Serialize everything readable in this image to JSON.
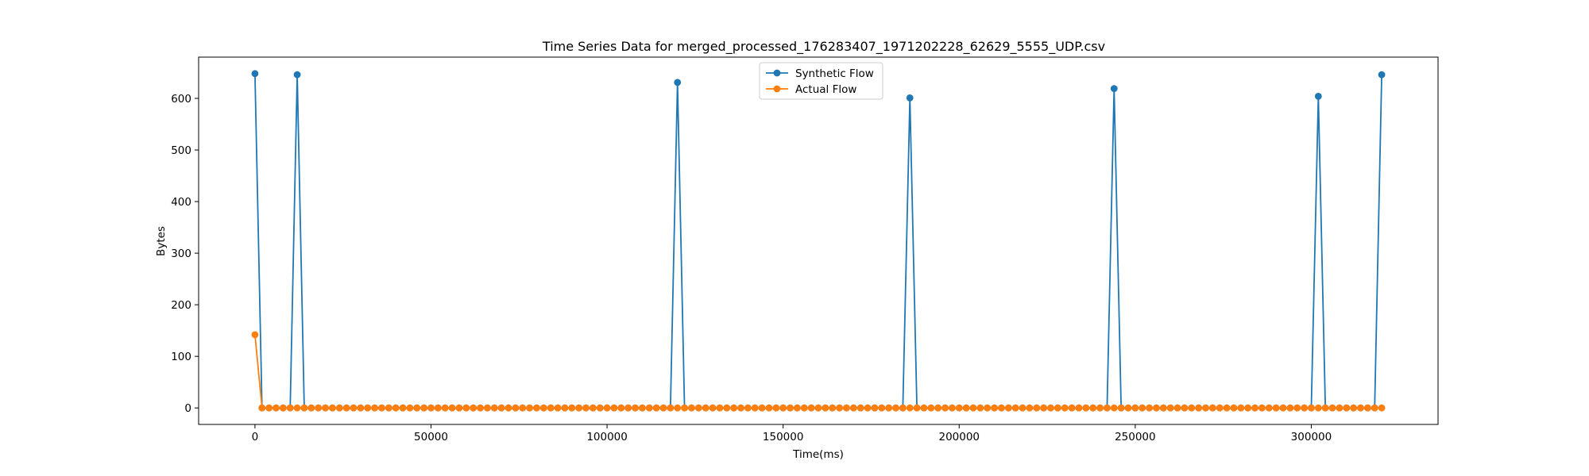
{
  "chart_data": {
    "type": "line",
    "title": "Time Series Data for merged_processed_176283407_1971202228_62629_5555_UDP.csv",
    "xlabel": "Time(ms)",
    "ylabel": "Bytes",
    "xlim": [
      -16000,
      336000
    ],
    "ylim": [
      -32,
      680
    ],
    "x_ticks": [
      0,
      50000,
      100000,
      150000,
      200000,
      250000,
      300000
    ],
    "y_ticks": [
      0,
      100,
      200,
      300,
      400,
      500,
      600
    ],
    "grid": false,
    "legend_position": "top-center",
    "x_start": 0,
    "x_step": 2000,
    "x_end": 320000,
    "series": [
      {
        "name": "Synthetic Flow",
        "color": "#1f77b4",
        "points": [
          [
            0,
            648
          ],
          [
            2000,
            0
          ],
          [
            4000,
            0
          ],
          [
            6000,
            0
          ],
          [
            8000,
            0
          ],
          [
            10000,
            0
          ],
          [
            12000,
            646
          ],
          [
            14000,
            0
          ],
          [
            118000,
            0
          ],
          [
            120000,
            631
          ],
          [
            122000,
            0
          ],
          [
            184000,
            0
          ],
          [
            186000,
            601
          ],
          [
            188000,
            0
          ],
          [
            242000,
            0
          ],
          [
            244000,
            619
          ],
          [
            246000,
            0
          ],
          [
            300000,
            0
          ],
          [
            302000,
            604
          ],
          [
            304000,
            0
          ],
          [
            318000,
            0
          ],
          [
            320000,
            646
          ]
        ]
      },
      {
        "name": "Actual Flow",
        "color": "#ff7f0e",
        "first_point": [
          0,
          142
        ],
        "rest_value": 0
      }
    ]
  }
}
